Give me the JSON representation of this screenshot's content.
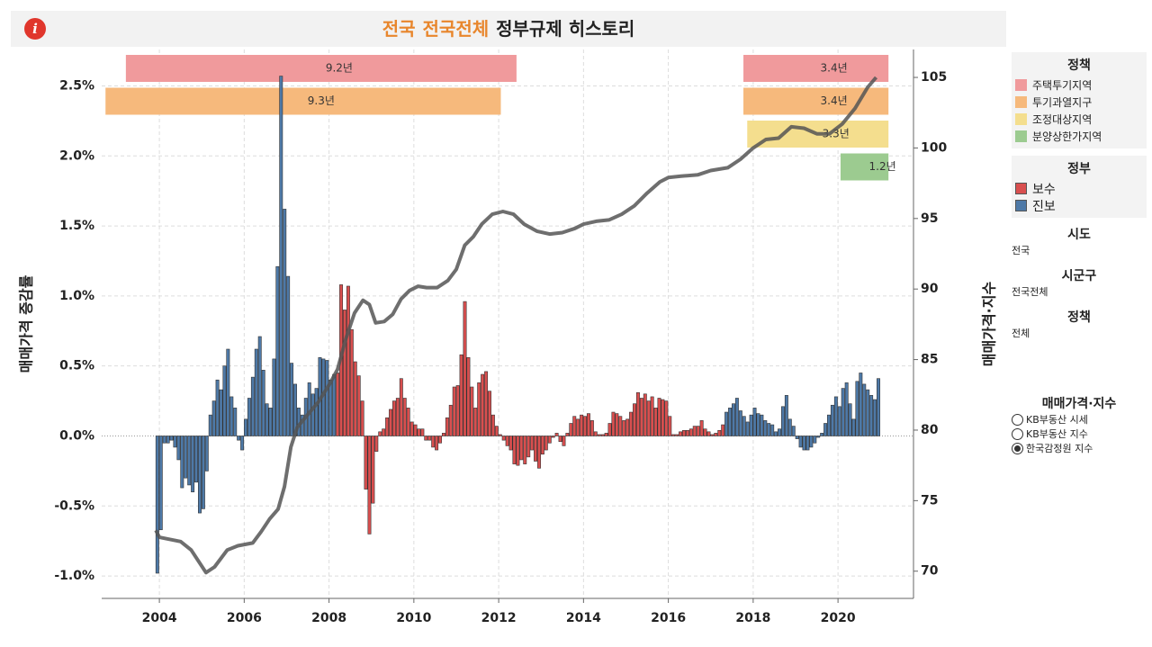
{
  "header": {
    "region": "전국",
    "district": "전국전체",
    "text": "정부규제 히스토리"
  },
  "filters": [
    {
      "label": "시도",
      "value": "전국"
    },
    {
      "label": "시군구",
      "value": "전국전체"
    },
    {
      "label": "정책",
      "value": "전체"
    }
  ],
  "selector": {
    "label": "매매가격·지수",
    "options": [
      "KB부동산 시세",
      "KB부동산 지수",
      "한국감정원 지수"
    ],
    "selected": 2
  },
  "chart_data": {
    "type": "bar",
    "ylabel": "매매가격 증감률",
    "y2label": "매매가격·지수",
    "xlim": [
      2002.64,
      2021.78
    ],
    "xticks": [
      2004,
      2006,
      2008,
      2010,
      2012,
      2014,
      2016,
      2018,
      2020
    ],
    "ylim": [
      -1.16,
      2.76
    ],
    "yticks": [
      {
        "value": -1.0,
        "label": "-1.0%"
      },
      {
        "value": -0.5,
        "label": "-0.5%"
      },
      {
        "value": 0,
        "label": "0.0%"
      },
      {
        "value": 0.5,
        "label": "0.5%"
      },
      {
        "value": 1.0,
        "label": "1.0%"
      },
      {
        "value": 1.5,
        "label": "1.5%"
      },
      {
        "value": 2.0,
        "label": "2.0%"
      },
      {
        "value": 2.5,
        "label": "2.5%"
      }
    ],
    "y2lim": [
      68.07,
      106.98
    ],
    "y2ticks": [
      70,
      75,
      80,
      85,
      90,
      95,
      100,
      105
    ],
    "grid": true,
    "legend_title": "정부",
    "series": [
      {
        "name": "보수",
        "color": "#d94f4f",
        "x": [
          2008.167,
          2008.25,
          2008.333,
          2008.417,
          2008.5,
          2008.583,
          2008.667,
          2008.75,
          2008.833,
          2008.917,
          2009.0,
          2009.083,
          2009.167,
          2009.25,
          2009.333,
          2009.417,
          2009.5,
          2009.583,
          2009.667,
          2009.75,
          2009.833,
          2009.917,
          2010.0,
          2010.083,
          2010.167,
          2010.25,
          2010.333,
          2010.417,
          2010.5,
          2010.583,
          2010.667,
          2010.75,
          2010.833,
          2010.917,
          2011.0,
          2011.083,
          2011.167,
          2011.25,
          2011.333,
          2011.417,
          2011.5,
          2011.583,
          2011.667,
          2011.75,
          2011.833,
          2011.917,
          2012.0,
          2012.083,
          2012.167,
          2012.25,
          2012.333,
          2012.417,
          2012.5,
          2012.583,
          2012.667,
          2012.75,
          2012.833,
          2012.917,
          2013.0,
          2013.083,
          2013.167,
          2013.25,
          2013.333,
          2013.417,
          2013.5,
          2013.583,
          2013.667,
          2013.75,
          2013.833,
          2013.917,
          2014.0,
          2014.083,
          2014.167,
          2014.25,
          2014.333,
          2014.417,
          2014.5,
          2014.583,
          2014.667,
          2014.75,
          2014.833,
          2014.917,
          2015.0,
          2015.083,
          2015.167,
          2015.25,
          2015.333,
          2015.417,
          2015.5,
          2015.583,
          2015.667,
          2015.75,
          2015.833,
          2015.917,
          2016.0,
          2016.083,
          2016.167,
          2016.25,
          2016.333,
          2016.417,
          2016.5,
          2016.583,
          2016.667,
          2016.75,
          2016.833,
          2016.917,
          2017.0,
          2017.083,
          2017.167,
          2017.25
        ],
        "values": [
          0.45,
          1.08,
          0.9,
          1.07,
          0.76,
          0.53,
          0.43,
          0.25,
          -0.38,
          -0.7,
          -0.48,
          -0.11,
          0.03,
          0.05,
          0.13,
          0.19,
          0.25,
          0.27,
          0.41,
          0.27,
          0.2,
          0.1,
          0.08,
          0.05,
          0.05,
          -0.03,
          -0.03,
          -0.08,
          -0.1,
          -0.05,
          0.02,
          0.13,
          0.22,
          0.35,
          0.36,
          0.58,
          0.96,
          0.56,
          0.35,
          0.2,
          0.38,
          0.44,
          0.46,
          0.32,
          0.15,
          0.07,
          0.01,
          -0.03,
          -0.07,
          -0.1,
          -0.2,
          -0.21,
          -0.17,
          -0.2,
          -0.15,
          -0.1,
          -0.18,
          -0.23,
          -0.13,
          -0.1,
          -0.05,
          -0.01,
          0.02,
          -0.04,
          -0.07,
          0.02,
          0.09,
          0.14,
          0.12,
          0.15,
          0.14,
          0.16,
          0.11,
          0.03,
          0.01,
          0.01,
          0.02,
          0.09,
          0.17,
          0.16,
          0.14,
          0.11,
          0.12,
          0.17,
          0.23,
          0.31,
          0.27,
          0.3,
          0.25,
          0.28,
          0.2,
          0.27,
          0.26,
          0.25,
          0.14,
          0.01,
          0.01,
          0.03,
          0.04,
          0.04,
          0.05,
          0.07,
          0.07,
          0.11,
          0.05,
          0.03,
          0.01,
          0.02,
          0.04,
          0.08
        ]
      },
      {
        "name": "진보",
        "color": "#4e79a7",
        "x": [
          2003.917,
          2004.0,
          2004.083,
          2004.167,
          2004.25,
          2004.333,
          2004.417,
          2004.5,
          2004.583,
          2004.667,
          2004.75,
          2004.833,
          2004.917,
          2005.0,
          2005.083,
          2005.167,
          2005.25,
          2005.333,
          2005.417,
          2005.5,
          2005.583,
          2005.667,
          2005.75,
          2005.833,
          2005.917,
          2006.0,
          2006.083,
          2006.167,
          2006.25,
          2006.333,
          2006.417,
          2006.5,
          2006.583,
          2006.667,
          2006.75,
          2006.833,
          2006.917,
          2007.0,
          2007.083,
          2007.167,
          2007.25,
          2007.333,
          2007.417,
          2007.5,
          2007.583,
          2007.667,
          2007.75,
          2007.833,
          2007.917,
          2008.0,
          2008.083,
          2017.333,
          2017.417,
          2017.5,
          2017.583,
          2017.667,
          2017.75,
          2017.833,
          2017.917,
          2018.0,
          2018.083,
          2018.167,
          2018.25,
          2018.333,
          2018.417,
          2018.5,
          2018.583,
          2018.667,
          2018.75,
          2018.833,
          2018.917,
          2019.0,
          2019.083,
          2019.167,
          2019.25,
          2019.333,
          2019.417,
          2019.5,
          2019.583,
          2019.667,
          2019.75,
          2019.833,
          2019.917,
          2020.0,
          2020.083,
          2020.167,
          2020.25,
          2020.333,
          2020.417,
          2020.5,
          2020.583,
          2020.667,
          2020.75,
          2020.833,
          2020.917
        ],
        "values": [
          -0.98,
          -0.67,
          -0.05,
          -0.05,
          -0.03,
          -0.08,
          -0.17,
          -0.37,
          -0.3,
          -0.35,
          -0.4,
          -0.33,
          -0.55,
          -0.52,
          -0.25,
          0.15,
          0.25,
          0.4,
          0.33,
          0.5,
          0.62,
          0.28,
          0.2,
          -0.03,
          -0.1,
          0.12,
          0.27,
          0.42,
          0.62,
          0.71,
          0.47,
          0.23,
          0.2,
          0.55,
          1.21,
          2.57,
          1.62,
          1.14,
          0.52,
          0.37,
          0.2,
          0.15,
          0.27,
          0.38,
          0.3,
          0.34,
          0.56,
          0.55,
          0.54,
          0.4,
          0.44,
          0.17,
          0.2,
          0.23,
          0.27,
          0.18,
          0.14,
          0.1,
          0.15,
          0.2,
          0.16,
          0.15,
          0.11,
          0.09,
          0.08,
          0.03,
          0.05,
          0.21,
          0.29,
          0.12,
          0.07,
          -0.02,
          -0.08,
          -0.1,
          -0.1,
          -0.08,
          -0.05,
          -0.01,
          0.02,
          0.09,
          0.15,
          0.22,
          0.28,
          0.21,
          0.34,
          0.38,
          0.23,
          0.12,
          0.39,
          0.45,
          0.37,
          0.33,
          0.29,
          0.26,
          0.41
        ]
      },
      {
        "type": "line",
        "axis": "y2",
        "color": "#555555",
        "x": [
          2003.917,
          2004.0,
          2004.5,
          2004.75,
          2005.1,
          2005.3,
          2005.6,
          2005.85,
          2006.2,
          2006.4,
          2006.6,
          2006.8,
          2006.95,
          2007.1,
          2007.25,
          2007.5,
          2007.75,
          2008.0,
          2008.2,
          2008.4,
          2008.6,
          2008.8,
          2008.95,
          2009.1,
          2009.3,
          2009.5,
          2009.7,
          2009.9,
          2010.1,
          2010.3,
          2010.55,
          2010.8,
          2011.0,
          2011.2,
          2011.4,
          2011.6,
          2011.85,
          2012.1,
          2012.35,
          2012.6,
          2012.9,
          2013.2,
          2013.5,
          2013.8,
          2014.0,
          2014.3,
          2014.6,
          2014.9,
          2015.2,
          2015.5,
          2015.8,
          2016.0,
          2016.3,
          2016.7,
          2017.0,
          2017.4,
          2017.7,
          2018.0,
          2018.3,
          2018.6,
          2018.9,
          2019.2,
          2019.5,
          2019.8,
          2020.1,
          2020.4,
          2020.7,
          2020.9
        ],
        "values": [
          72.9,
          72.4,
          72.1,
          71.5,
          69.9,
          70.3,
          71.5,
          71.8,
          72.0,
          72.8,
          73.7,
          74.4,
          76.0,
          78.8,
          80.2,
          81.1,
          82.0,
          83.2,
          84.3,
          86.5,
          88.3,
          89.2,
          88.9,
          87.6,
          87.7,
          88.2,
          89.3,
          89.9,
          90.2,
          90.1,
          90.1,
          90.6,
          91.4,
          93.1,
          93.7,
          94.6,
          95.3,
          95.5,
          95.3,
          94.6,
          94.1,
          93.9,
          94.0,
          94.3,
          94.6,
          94.8,
          94.9,
          95.3,
          95.9,
          96.8,
          97.6,
          97.9,
          98.0,
          98.1,
          98.4,
          98.6,
          99.2,
          100.0,
          100.6,
          100.7,
          101.5,
          101.4,
          101.0,
          101.0,
          101.7,
          102.8,
          104.3,
          105.0
        ]
      }
    ],
    "policy_title": "정책",
    "policies": [
      {
        "name": "주택투기지역",
        "color": "#f09a9c",
        "spans": [
          {
            "start": 2003.21,
            "end": 2012.42,
            "label": "9.2년"
          },
          {
            "start": 2017.77,
            "end": 2021.19,
            "label": "3.4년"
          }
        ]
      },
      {
        "name": "투기과열지구",
        "color": "#f6b97c",
        "spans": [
          {
            "start": 2002.73,
            "end": 2012.05,
            "label": "9.3년"
          },
          {
            "start": 2017.77,
            "end": 2021.19,
            "label": "3.4년"
          }
        ]
      },
      {
        "name": "조정대상지역",
        "color": "#f4de8e",
        "spans": [
          {
            "start": 2017.86,
            "end": 2021.19,
            "label": "3.3년"
          }
        ]
      },
      {
        "name": "분양상한가지역",
        "color": "#9ccb90",
        "spans": [
          {
            "start": 2020.06,
            "end": 2021.19,
            "label": "1.2년"
          }
        ]
      }
    ]
  }
}
